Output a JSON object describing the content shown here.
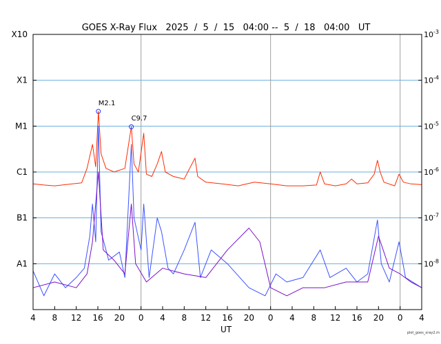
{
  "chart_data": {
    "type": "line",
    "title": "GOES X-Ray Flux   2025  /  5  /  15   04:00 --  5  /  18   04:00   UT",
    "xlabel": "UT",
    "x_range_hours": [
      0,
      72
    ],
    "x_tick_labels": [
      "4",
      "8",
      "12",
      "16",
      "20",
      "0",
      "4",
      "8",
      "12",
      "16",
      "20",
      "0",
      "4",
      "8",
      "12",
      "16",
      "20",
      "0",
      "4"
    ],
    "y_scale": "log",
    "y_range_wm2": [
      1e-09,
      0.001
    ],
    "left_axis_labels": [
      "A1",
      "B1",
      "C1",
      "M1",
      "X1",
      "X10"
    ],
    "right_axis_labels": [
      {
        "base": "10",
        "exp": "-8"
      },
      {
        "base": "10",
        "exp": "-7"
      },
      {
        "base": "10",
        "exp": "-6"
      },
      {
        "base": "10",
        "exp": "-5"
      },
      {
        "base": "10",
        "exp": "-4"
      },
      {
        "base": "10",
        "exp": "-3"
      }
    ],
    "day_boundaries_hours": [
      20,
      44,
      68
    ],
    "annotations": [
      {
        "label": "M2.1",
        "x": 12.1,
        "y": 2.1e-05
      },
      {
        "label": "C9.7",
        "x": 18.2,
        "y": 9.7e-06
      }
    ],
    "series": [
      {
        "color": "#ff2a00",
        "points": [
          [
            0,
            5.5e-07
          ],
          [
            2,
            5.2e-07
          ],
          [
            4,
            5e-07
          ],
          [
            6,
            5.3e-07
          ],
          [
            9,
            5.8e-07
          ],
          [
            10,
            1.2e-06
          ],
          [
            11,
            4e-06
          ],
          [
            11.6,
            1.3e-06
          ],
          [
            12.1,
            2.1e-05
          ],
          [
            12.6,
            2.5e-06
          ],
          [
            13.5,
            1.2e-06
          ],
          [
            15,
            1e-06
          ],
          [
            17,
            1.2e-06
          ],
          [
            18.2,
            9.7e-06
          ],
          [
            18.7,
            1.5e-06
          ],
          [
            19.5,
            1e-06
          ],
          [
            20.5,
            7e-06
          ],
          [
            21,
            9e-07
          ],
          [
            22,
            8e-07
          ],
          [
            23,
            1.5e-06
          ],
          [
            23.8,
            2.8e-06
          ],
          [
            24.5,
            1e-06
          ],
          [
            26,
            8e-07
          ],
          [
            28,
            7e-07
          ],
          [
            29,
            1.2e-06
          ],
          [
            30,
            2e-06
          ],
          [
            30.5,
            8e-07
          ],
          [
            32,
            6e-07
          ],
          [
            35,
            5.5e-07
          ],
          [
            38,
            5e-07
          ],
          [
            41,
            6e-07
          ],
          [
            44,
            5.5e-07
          ],
          [
            47,
            5e-07
          ],
          [
            50,
            5e-07
          ],
          [
            52.5,
            5.2e-07
          ],
          [
            53.2,
            1e-06
          ],
          [
            54,
            5.5e-07
          ],
          [
            56,
            5e-07
          ],
          [
            58,
            5.5e-07
          ],
          [
            59,
            7e-07
          ],
          [
            60,
            5.5e-07
          ],
          [
            62,
            5.8e-07
          ],
          [
            63.2,
            9e-07
          ],
          [
            63.8,
            1.8e-06
          ],
          [
            64.3,
            1e-06
          ],
          [
            65,
            6e-07
          ],
          [
            67,
            5e-07
          ],
          [
            67.8,
            9e-07
          ],
          [
            68.6,
            6e-07
          ],
          [
            70,
            5.5e-07
          ],
          [
            72,
            5.3e-07
          ]
        ]
      },
      {
        "color": "#3a52ff",
        "points": [
          [
            0,
            7e-09
          ],
          [
            2,
            2e-09
          ],
          [
            4,
            6e-09
          ],
          [
            6,
            3e-09
          ],
          [
            8,
            5e-09
          ],
          [
            9.5,
            8e-09
          ],
          [
            10.5,
            4e-08
          ],
          [
            11,
            2e-07
          ],
          [
            11.6,
            3e-08
          ],
          [
            12.1,
            1e-05
          ],
          [
            12.6,
            5e-08
          ],
          [
            14,
            1.2e-08
          ],
          [
            16,
            1.8e-08
          ],
          [
            17,
            5e-09
          ],
          [
            18.2,
            4e-06
          ],
          [
            18.7,
            1e-07
          ],
          [
            20,
            2e-08
          ],
          [
            20.5,
            2e-07
          ],
          [
            21.5,
            5e-09
          ],
          [
            23,
            1e-07
          ],
          [
            23.8,
            5e-08
          ],
          [
            25,
            8e-09
          ],
          [
            26,
            6e-09
          ],
          [
            28,
            2e-08
          ],
          [
            29,
            4e-08
          ],
          [
            30,
            8e-08
          ],
          [
            31,
            5e-09
          ],
          [
            33,
            2e-08
          ],
          [
            36,
            1e-08
          ],
          [
            40,
            3e-09
          ],
          [
            43,
            2e-09
          ],
          [
            45,
            6e-09
          ],
          [
            47,
            4e-09
          ],
          [
            50,
            5e-09
          ],
          [
            53.2,
            2e-08
          ],
          [
            55,
            5e-09
          ],
          [
            58,
            8e-09
          ],
          [
            60,
            4e-09
          ],
          [
            62,
            6e-09
          ],
          [
            63.8,
            9e-08
          ],
          [
            64.5,
            1e-08
          ],
          [
            66,
            4e-09
          ],
          [
            67.8,
            3e-08
          ],
          [
            69,
            5e-09
          ],
          [
            72,
            3e-09
          ]
        ]
      },
      {
        "color": "#7a10c8",
        "points": [
          [
            0,
            3e-09
          ],
          [
            4,
            4e-09
          ],
          [
            8,
            3e-09
          ],
          [
            10,
            6e-09
          ],
          [
            11,
            3e-08
          ],
          [
            12.1,
            1e-06
          ],
          [
            13,
            2e-08
          ],
          [
            15,
            1.2e-08
          ],
          [
            17,
            6e-09
          ],
          [
            18.2,
            2e-07
          ],
          [
            19,
            1e-08
          ],
          [
            21,
            4e-09
          ],
          [
            24,
            8e-09
          ],
          [
            28,
            6e-09
          ],
          [
            32,
            5e-09
          ],
          [
            36,
            2e-08
          ],
          [
            40,
            6e-08
          ],
          [
            42,
            3e-08
          ],
          [
            44,
            3e-09
          ],
          [
            47,
            2e-09
          ],
          [
            50,
            3e-09
          ],
          [
            54,
            3e-09
          ],
          [
            58,
            4e-09
          ],
          [
            62,
            4e-09
          ],
          [
            64,
            4e-08
          ],
          [
            66,
            8e-09
          ],
          [
            68,
            6e-09
          ],
          [
            70,
            4e-09
          ],
          [
            72,
            3e-09
          ]
        ]
      }
    ],
    "credit": "plot_goes_xray2.m"
  }
}
